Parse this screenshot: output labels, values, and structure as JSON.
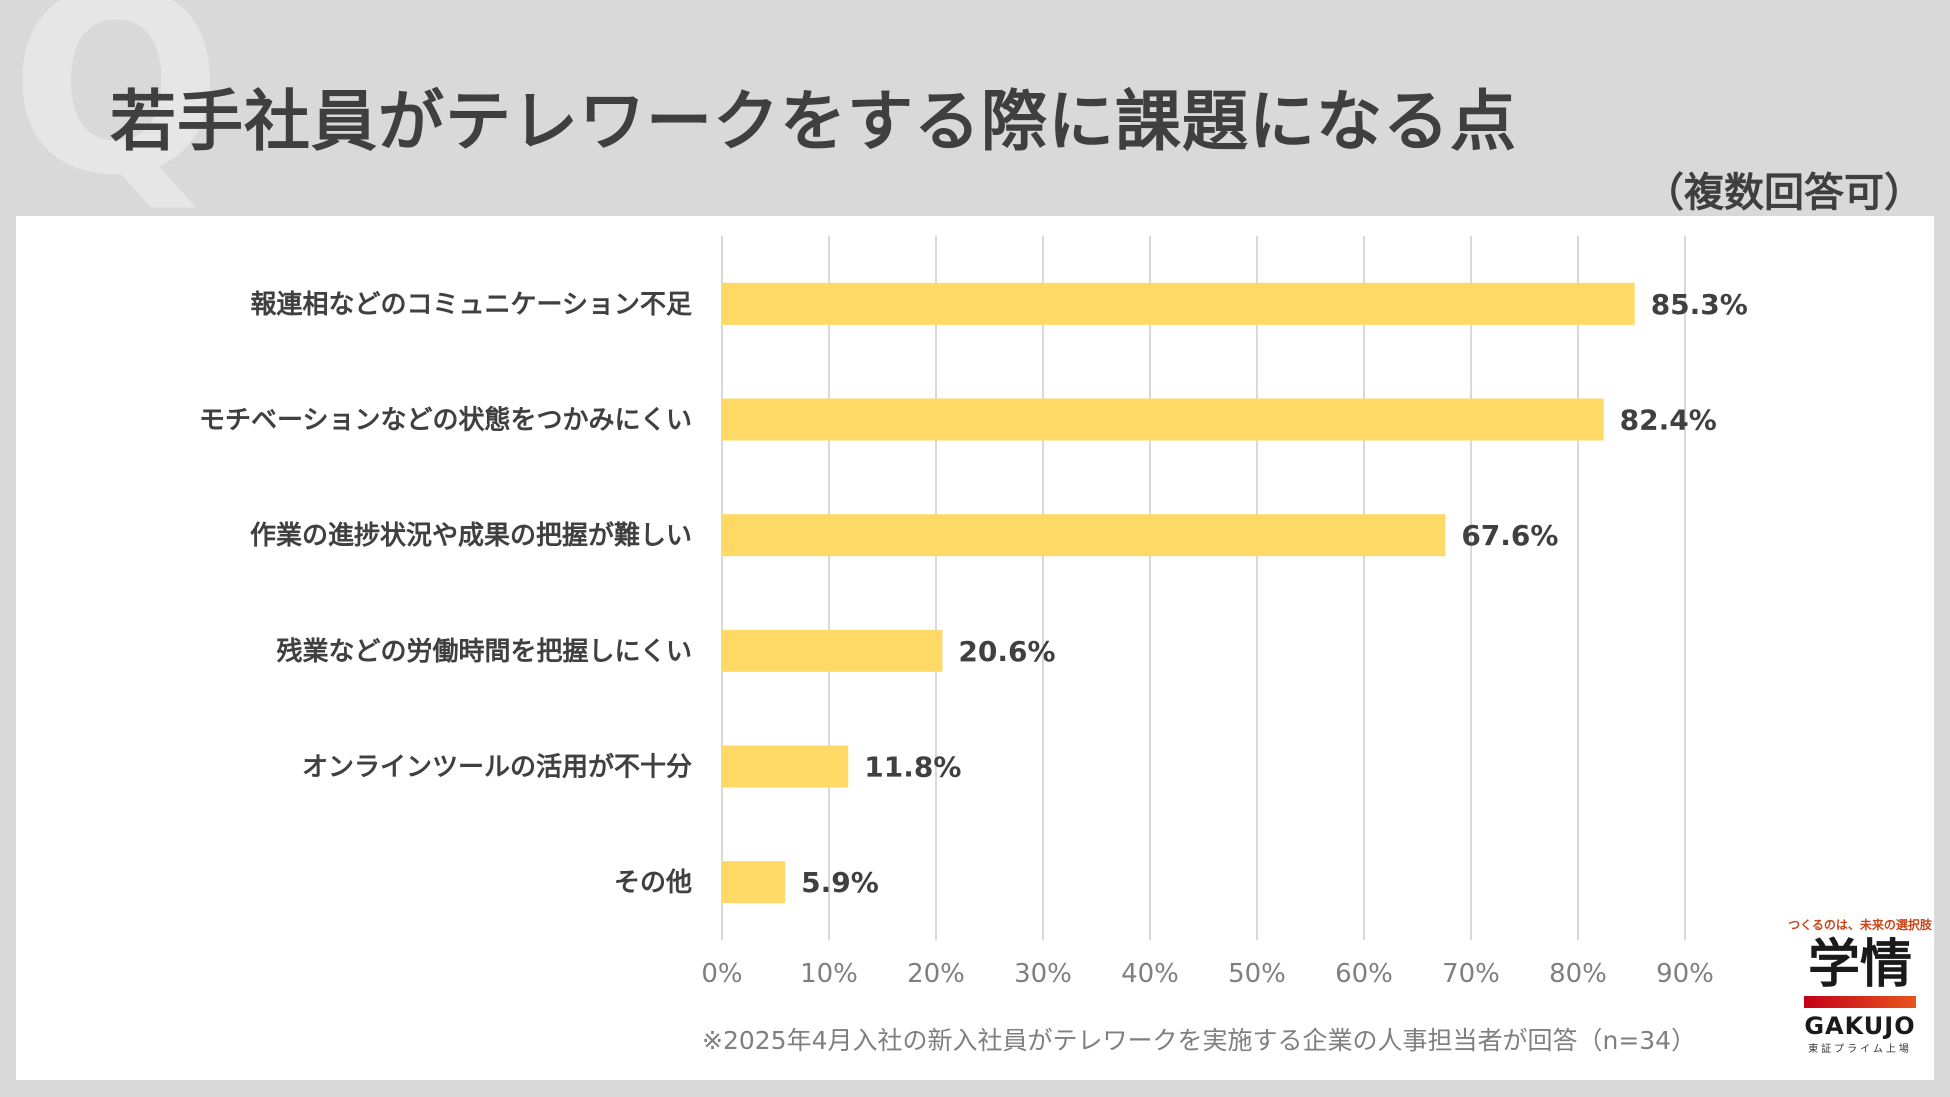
{
  "header": {
    "watermark": "Q",
    "title": "若手社員がテレワークをする際に課題になる点",
    "subtitle": "（複数回答可）"
  },
  "chart_data": {
    "type": "bar",
    "orientation": "horizontal",
    "categories": [
      "報連相などのコミュニケーション不足",
      "モチベーションなどの状態をつかみにくい",
      "作業の進捗状況や成果の把握が難しい",
      "残業などの労働時間を把握しにくい",
      "オンラインツールの活用が不十分",
      "その他"
    ],
    "values": [
      85.3,
      82.4,
      67.6,
      20.6,
      11.8,
      5.9
    ],
    "value_labels": [
      "85.3%",
      "82.4%",
      "67.6%",
      "20.6%",
      "11.8%",
      "5.9%"
    ],
    "xlim": [
      0,
      90
    ],
    "xticks": [
      0,
      10,
      20,
      30,
      40,
      50,
      60,
      70,
      80,
      90
    ],
    "xtick_labels": [
      "0%",
      "10%",
      "20%",
      "30%",
      "40%",
      "50%",
      "60%",
      "70%",
      "80%",
      "90%"
    ],
    "grid": true,
    "bar_color": "#ffd966"
  },
  "footnote": "※2025年4月入社の新入社員がテレワークを実施する企業の人事担当者が回答（n=34）",
  "logo": {
    "tagline": "つくるのは、未来の選択肢",
    "mark": "学情",
    "name": "GAKUJO",
    "sub": "東証プライム上場"
  }
}
